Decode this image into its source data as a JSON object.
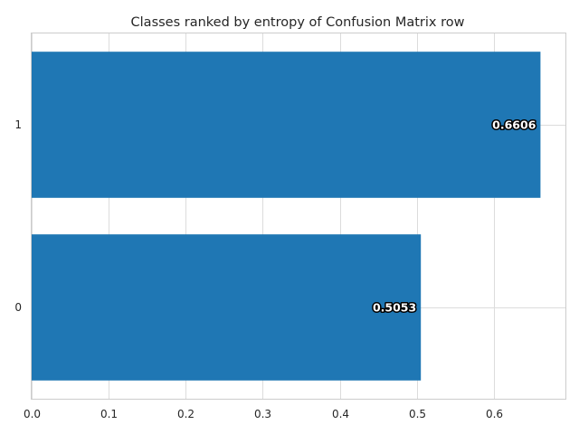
{
  "chart_data": {
    "type": "bar",
    "orientation": "horizontal",
    "title": "Classes ranked by entropy of Confusion Matrix row",
    "categories": [
      "0",
      "1"
    ],
    "values": [
      0.5053,
      0.6606
    ],
    "value_labels": [
      "0.5053",
      "0.6606"
    ],
    "xlabel": "",
    "ylabel": "",
    "xlim": [
      0,
      0.693
    ],
    "xticks": [
      0.0,
      0.1,
      0.2,
      0.3,
      0.4,
      0.5,
      0.6
    ],
    "xtick_labels": [
      "0.0",
      "0.1",
      "0.2",
      "0.3",
      "0.4",
      "0.5",
      "0.6"
    ],
    "grid": true,
    "bar_color": "#1f77b4"
  }
}
